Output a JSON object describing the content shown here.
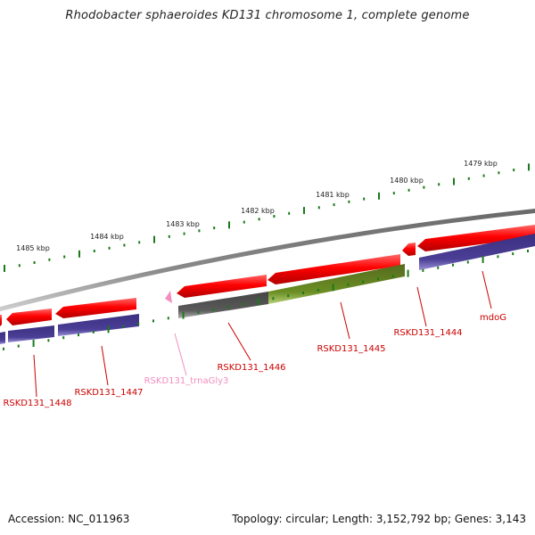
{
  "title": "Rhodobacter sphaeroides KD131 chromosome 1, complete genome",
  "footer": {
    "accession": "Accession: NC_011963",
    "topology": "Topology: circular; Length: 3,152,792 bp; Genes: 3,143"
  },
  "scale_labels": [
    "1485 kbp",
    "1484 kbp",
    "1483 kbp",
    "1482 kbp",
    "1481 kbp",
    "1480 kbp",
    "1479 kbp"
  ],
  "genes": [
    {
      "name": "RSKD131_1448",
      "color": "#cc0000"
    },
    {
      "name": "RSKD131_1447",
      "color": "#cc0000"
    },
    {
      "name": "RSKD131_trnaGly3",
      "color": "#f28fc0"
    },
    {
      "name": "RSKD131_1446",
      "color": "#cc0000"
    },
    {
      "name": "RSKD131_1445",
      "color": "#cc0000"
    },
    {
      "name": "RSKD131_1444",
      "color": "#cc0000"
    },
    {
      "name": "mdoG",
      "color": "#cc0000"
    }
  ],
  "colors": {
    "backbone": "#8a8a8a",
    "cds": "#ee0000",
    "protein": "#4a3f8f",
    "pseudo": "#555555",
    "highlight": "#6b8e23",
    "trna": "#f28fc0",
    "tick": "#1a7a1a",
    "label": "#cc0000"
  }
}
